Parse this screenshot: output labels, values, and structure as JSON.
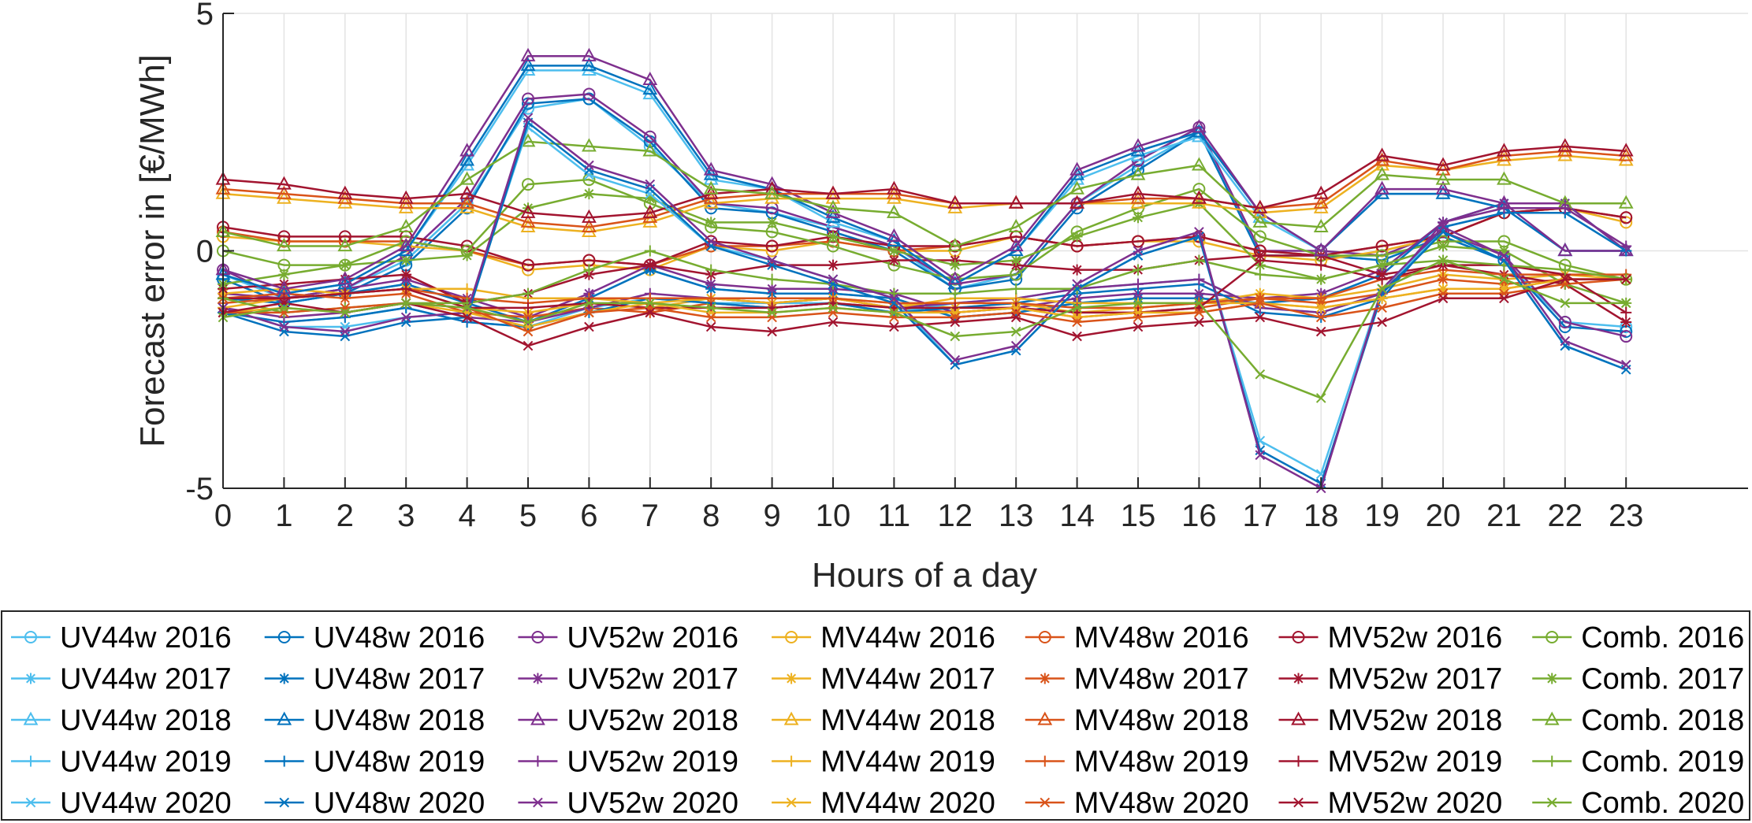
{
  "chart_data": {
    "type": "line",
    "title": "",
    "xlabel": "Hours of a day",
    "ylabel": "Forecast error in [€/MWh]",
    "x": [
      0,
      1,
      2,
      3,
      4,
      5,
      6,
      7,
      8,
      9,
      10,
      11,
      12,
      13,
      14,
      15,
      16,
      17,
      18,
      19,
      20,
      21,
      22,
      23
    ],
    "x_ticks": [
      "0",
      "1",
      "2",
      "3",
      "4",
      "5",
      "6",
      "7",
      "8",
      "9",
      "10",
      "11",
      "12",
      "13",
      "14",
      "15",
      "16",
      "17",
      "18",
      "19",
      "20",
      "21",
      "22",
      "23"
    ],
    "xlim": [
      0,
      25.0
    ],
    "ylim": [
      -5,
      5
    ],
    "y_ticks": [
      "-5",
      "0",
      "5"
    ],
    "grid": true,
    "legend_position": "bottom",
    "colors": {
      "UV44w": "#4DBEEE",
      "UV48w": "#0072BD",
      "UV52w": "#7E2F8E",
      "MV44w": "#EDB120",
      "MV48w": "#D95319",
      "MV52w": "#A2142F",
      "Comb.": "#77AC30"
    },
    "series": [
      {
        "name": "UV44w 2016",
        "model": "UV44w",
        "marker": "circle",
        "values": [
          -0.5,
          -1.0,
          -0.8,
          -0.2,
          1.0,
          3.0,
          3.2,
          2.2,
          1.0,
          0.8,
          0.5,
          0.1,
          -0.8,
          -0.5,
          1.0,
          1.8,
          2.5,
          -0.1,
          -0.1,
          -0.2,
          0.3,
          -0.2,
          -1.5,
          -1.6
        ]
      },
      {
        "name": "UV48w 2016",
        "model": "UV48w",
        "marker": "circle",
        "values": [
          -0.6,
          -1.1,
          -0.9,
          -0.3,
          0.9,
          3.1,
          3.2,
          2.3,
          0.9,
          0.8,
          0.4,
          0.0,
          -0.8,
          -0.6,
          0.9,
          1.7,
          2.5,
          -0.1,
          -0.1,
          -0.2,
          0.3,
          -0.2,
          -1.6,
          -1.7
        ]
      },
      {
        "name": "UV52w 2016",
        "model": "UV52w",
        "marker": "circle",
        "values": [
          -0.4,
          -1.0,
          -0.8,
          -0.1,
          1.1,
          3.2,
          3.3,
          2.4,
          1.0,
          0.9,
          0.5,
          0.1,
          -0.7,
          -0.5,
          1.0,
          1.9,
          2.6,
          0.0,
          0.0,
          -0.1,
          0.4,
          -0.1,
          -1.5,
          -1.8
        ]
      },
      {
        "name": "MV44w 2016",
        "model": "MV44w",
        "marker": "circle",
        "values": [
          0.3,
          0.2,
          0.2,
          0.1,
          0.0,
          -0.4,
          -0.3,
          -0.4,
          0.1,
          0.0,
          0.2,
          0.0,
          0.0,
          0.3,
          0.1,
          0.2,
          0.2,
          -0.1,
          -0.2,
          0.0,
          0.3,
          0.8,
          0.9,
          0.6
        ]
      },
      {
        "name": "MV48w 2016",
        "model": "MV48w",
        "marker": "circle",
        "values": [
          0.4,
          0.2,
          0.2,
          0.2,
          0.0,
          -0.3,
          -0.2,
          -0.3,
          0.1,
          0.1,
          0.2,
          0.0,
          0.1,
          0.3,
          0.1,
          0.2,
          0.3,
          0.0,
          -0.1,
          0.1,
          0.3,
          0.8,
          0.9,
          0.7
        ]
      },
      {
        "name": "MV52w 2016",
        "model": "MV52w",
        "marker": "circle",
        "values": [
          0.5,
          0.3,
          0.3,
          0.3,
          0.1,
          -0.3,
          -0.2,
          -0.3,
          0.2,
          0.1,
          0.3,
          0.1,
          0.1,
          0.3,
          0.1,
          0.2,
          0.3,
          0.0,
          -0.1,
          0.1,
          0.3,
          0.8,
          0.9,
          0.7
        ]
      },
      {
        "name": "Comb. 2016",
        "model": "Comb.",
        "marker": "circle",
        "values": [
          0.0,
          -0.3,
          -0.3,
          0.2,
          0.0,
          1.4,
          1.5,
          1.0,
          0.5,
          0.4,
          0.1,
          -0.3,
          -0.6,
          -0.5,
          0.4,
          0.9,
          1.3,
          0.3,
          -0.1,
          -0.1,
          0.2,
          0.2,
          -0.3,
          -0.6
        ]
      },
      {
        "name": "UV44w 2017",
        "model": "UV44w",
        "marker": "asterisk",
        "values": [
          -1.0,
          -1.1,
          -0.9,
          -0.7,
          -1.1,
          -1.5,
          -1.0,
          -0.4,
          -0.8,
          -0.9,
          -0.9,
          -1.0,
          -1.4,
          -1.3,
          -1.1,
          -1.0,
          -1.0,
          -1.1,
          -1.0,
          -0.5,
          0.6,
          1.0,
          1.0,
          0.0
        ]
      },
      {
        "name": "UV48w 2017",
        "model": "UV48w",
        "marker": "asterisk",
        "values": [
          -1.0,
          -1.1,
          -0.9,
          -0.7,
          -1.1,
          -1.5,
          -1.0,
          -0.4,
          -0.8,
          -0.9,
          -0.9,
          -1.0,
          -1.4,
          -1.3,
          -1.1,
          -1.0,
          -1.0,
          -1.1,
          -1.0,
          -0.5,
          0.6,
          1.0,
          1.0,
          0.0
        ]
      },
      {
        "name": "UV52w 2017",
        "model": "UV52w",
        "marker": "asterisk",
        "values": [
          -0.9,
          -1.0,
          -0.8,
          -0.6,
          -1.0,
          -1.4,
          -0.9,
          -0.3,
          -0.7,
          -0.8,
          -0.8,
          -0.9,
          -1.3,
          -1.2,
          -1.0,
          -0.9,
          -0.9,
          -1.0,
          -0.9,
          -0.4,
          0.6,
          1.0,
          1.0,
          0.0
        ]
      },
      {
        "name": "MV44w 2017",
        "model": "MV44w",
        "marker": "asterisk",
        "values": [
          -0.9,
          -0.8,
          -0.9,
          -0.8,
          -1.2,
          -1.3,
          -1.1,
          -1.2,
          -1.0,
          -1.1,
          -1.0,
          -1.1,
          -1.2,
          -1.1,
          -1.3,
          -1.2,
          -1.1,
          -0.9,
          -1.0,
          -0.8,
          -0.5,
          -0.6,
          -0.5,
          -0.6
        ]
      },
      {
        "name": "MV48w 2017",
        "model": "MV48w",
        "marker": "asterisk",
        "values": [
          -1.0,
          -0.9,
          -1.0,
          -0.9,
          -1.3,
          -1.4,
          -1.2,
          -1.3,
          -1.1,
          -1.2,
          -1.1,
          -1.2,
          -1.3,
          -1.2,
          -1.4,
          -1.3,
          -1.2,
          -1.0,
          -1.1,
          -0.9,
          -0.6,
          -0.7,
          -0.6,
          -0.6
        ]
      },
      {
        "name": "MV52w 2017",
        "model": "MV52w",
        "marker": "asterisk",
        "values": [
          -0.8,
          -0.7,
          -0.6,
          -0.5,
          -1.1,
          -0.9,
          -0.5,
          -0.3,
          -0.5,
          -0.3,
          -0.3,
          -0.2,
          -0.2,
          -0.3,
          -0.4,
          -0.4,
          -0.2,
          -0.1,
          -0.1,
          -0.5,
          -0.3,
          -0.5,
          -0.7,
          -1.5
        ]
      },
      {
        "name": "Comb. 2017",
        "model": "Comb.",
        "marker": "asterisk",
        "values": [
          -0.7,
          -0.5,
          -0.3,
          -0.2,
          -0.1,
          0.9,
          1.2,
          1.1,
          0.6,
          0.6,
          0.3,
          0.0,
          -0.3,
          -0.2,
          0.3,
          0.7,
          1.0,
          -0.3,
          -0.6,
          -0.3,
          0.1,
          0.0,
          -0.7,
          -1.1
        ]
      },
      {
        "name": "UV44w 2018",
        "model": "UV44w",
        "marker": "triangle",
        "values": [
          -0.5,
          -0.9,
          -0.7,
          0.0,
          1.8,
          3.8,
          3.8,
          3.3,
          1.5,
          1.3,
          0.6,
          0.2,
          -0.7,
          0.0,
          1.5,
          2.0,
          2.4,
          0.7,
          0.0,
          1.2,
          1.2,
          0.9,
          0.0,
          0.0
        ]
      },
      {
        "name": "UV48w 2018",
        "model": "UV48w",
        "marker": "triangle",
        "values": [
          -0.5,
          -0.9,
          -0.7,
          0.0,
          1.9,
          3.9,
          3.9,
          3.4,
          1.6,
          1.3,
          0.7,
          0.2,
          -0.7,
          0.0,
          1.6,
          2.1,
          2.5,
          0.8,
          0.0,
          1.2,
          1.2,
          0.9,
          0.0,
          0.0
        ]
      },
      {
        "name": "UV52w 2018",
        "model": "UV52w",
        "marker": "triangle",
        "values": [
          -0.4,
          -0.8,
          -0.6,
          0.1,
          2.1,
          4.1,
          4.1,
          3.6,
          1.7,
          1.4,
          0.8,
          0.3,
          -0.6,
          0.1,
          1.7,
          2.2,
          2.6,
          0.8,
          0.0,
          1.3,
          1.3,
          1.0,
          0.0,
          0.0
        ]
      },
      {
        "name": "MV44w 2018",
        "model": "MV44w",
        "marker": "triangle",
        "values": [
          1.2,
          1.1,
          1.0,
          0.9,
          0.9,
          0.5,
          0.4,
          0.6,
          1.0,
          1.1,
          1.1,
          1.1,
          0.9,
          1.0,
          1.0,
          1.0,
          1.0,
          0.8,
          0.9,
          1.8,
          1.7,
          1.9,
          2.0,
          1.9
        ]
      },
      {
        "name": "MV48w 2018",
        "model": "MV48w",
        "marker": "triangle",
        "values": [
          1.3,
          1.2,
          1.1,
          1.0,
          1.0,
          0.6,
          0.5,
          0.7,
          1.1,
          1.2,
          1.2,
          1.2,
          1.0,
          1.0,
          1.0,
          1.1,
          1.1,
          0.9,
          1.0,
          1.9,
          1.7,
          2.0,
          2.1,
          2.0
        ]
      },
      {
        "name": "MV52w 2018",
        "model": "MV52w",
        "marker": "triangle",
        "values": [
          1.5,
          1.4,
          1.2,
          1.1,
          1.2,
          0.8,
          0.7,
          0.8,
          1.2,
          1.3,
          1.2,
          1.3,
          1.0,
          1.0,
          1.0,
          1.2,
          1.1,
          0.9,
          1.2,
          2.0,
          1.8,
          2.1,
          2.2,
          2.1
        ]
      },
      {
        "name": "Comb. 2018",
        "model": "Comb.",
        "marker": "triangle",
        "values": [
          0.4,
          0.1,
          0.1,
          0.5,
          1.5,
          2.3,
          2.2,
          2.1,
          1.3,
          1.2,
          0.9,
          0.8,
          0.1,
          0.5,
          1.3,
          1.6,
          1.8,
          0.6,
          0.5,
          1.6,
          1.5,
          1.5,
          1.0,
          1.0
        ]
      },
      {
        "name": "UV44w 2019",
        "model": "UV44w",
        "marker": "plus",
        "values": [
          -1.3,
          -1.5,
          -1.4,
          -1.2,
          -1.5,
          -1.6,
          -1.2,
          -1.0,
          -1.1,
          -1.1,
          -1.1,
          -1.3,
          -1.1,
          -1.0,
          -0.8,
          -0.7,
          -0.6,
          -1.2,
          -1.3,
          -0.9,
          0.5,
          0.8,
          0.8,
          0.0
        ]
      },
      {
        "name": "UV48w 2019",
        "model": "UV48w",
        "marker": "plus",
        "values": [
          -1.3,
          -1.5,
          -1.4,
          -1.2,
          -1.5,
          -1.6,
          -1.3,
          -1.0,
          -1.1,
          -1.2,
          -1.1,
          -1.3,
          -1.2,
          -1.1,
          -0.9,
          -0.8,
          -0.7,
          -1.3,
          -1.4,
          -1.0,
          0.5,
          0.8,
          0.8,
          0.0
        ]
      },
      {
        "name": "UV52w 2019",
        "model": "UV52w",
        "marker": "plus",
        "values": [
          -1.2,
          -1.4,
          -1.3,
          -1.1,
          -1.4,
          -1.5,
          -1.2,
          -0.9,
          -1.0,
          -1.1,
          -1.0,
          -1.2,
          -1.1,
          -1.0,
          -0.8,
          -0.7,
          -0.6,
          -1.2,
          -1.3,
          -0.9,
          0.6,
          0.9,
          0.9,
          0.1
        ]
      },
      {
        "name": "MV44w 2019",
        "model": "MV44w",
        "marker": "plus",
        "values": [
          -1.2,
          -1.0,
          -0.9,
          -0.8,
          -0.8,
          -1.0,
          -1.0,
          -1.1,
          -1.0,
          -1.1,
          -1.0,
          -1.2,
          -1.0,
          -1.0,
          -1.1,
          -1.1,
          -1.1,
          -1.1,
          -1.2,
          -1.0,
          -0.8,
          -0.8,
          -0.6,
          -0.6
        ]
      },
      {
        "name": "MV48w 2019",
        "model": "MV48w",
        "marker": "plus",
        "values": [
          -1.1,
          -1.0,
          -0.9,
          -0.8,
          -1.0,
          -1.1,
          -1.0,
          -1.0,
          -1.0,
          -1.0,
          -1.0,
          -1.1,
          -1.1,
          -1.1,
          -1.2,
          -1.2,
          -1.1,
          -1.0,
          -1.0,
          -0.6,
          -0.4,
          -0.5,
          -0.5,
          -0.5
        ]
      },
      {
        "name": "MV52w 2019",
        "model": "MV52w",
        "marker": "plus",
        "values": [
          -1.0,
          -1.0,
          -0.9,
          -0.8,
          -1.2,
          -1.2,
          -1.1,
          -1.2,
          -1.2,
          -1.2,
          -1.1,
          -1.2,
          -1.2,
          -1.2,
          -1.3,
          -1.3,
          -1.2,
          -0.2,
          -0.3,
          -0.6,
          -0.3,
          -0.3,
          -0.5,
          -1.3
        ]
      },
      {
        "name": "Comb. 2019",
        "model": "Comb.",
        "marker": "plus",
        "values": [
          -1.0,
          -1.3,
          -1.2,
          -1.1,
          -1.1,
          -0.9,
          -0.4,
          0.0,
          -0.4,
          -0.6,
          -0.7,
          -0.9,
          -0.9,
          -0.8,
          -0.8,
          -0.4,
          -0.2,
          -0.5,
          -0.6,
          -0.3,
          -0.2,
          -0.3,
          -0.4,
          -0.6
        ]
      },
      {
        "name": "UV44w 2020",
        "model": "UV44w",
        "marker": "x",
        "values": [
          -1.2,
          -1.6,
          -1.6,
          -1.4,
          -1.3,
          2.6,
          1.6,
          1.2,
          0.1,
          -0.2,
          -0.6,
          -1.0,
          -2.4,
          -2.1,
          -0.8,
          -0.1,
          0.3,
          -4.0,
          -4.7,
          -0.8,
          0.4,
          -0.2,
          -2.0,
          -2.5
        ]
      },
      {
        "name": "UV48w 2020",
        "model": "UV48w",
        "marker": "x",
        "values": [
          -1.3,
          -1.7,
          -1.8,
          -1.5,
          -1.4,
          2.7,
          1.7,
          1.3,
          0.1,
          -0.3,
          -0.7,
          -1.1,
          -2.4,
          -2.1,
          -0.8,
          -0.1,
          0.3,
          -4.2,
          -4.9,
          -0.9,
          0.4,
          -0.2,
          -2.0,
          -2.5
        ]
      },
      {
        "name": "UV52w 2020",
        "model": "UV52w",
        "marker": "x",
        "values": [
          -1.2,
          -1.6,
          -1.7,
          -1.4,
          -1.3,
          2.8,
          1.8,
          1.4,
          0.2,
          -0.2,
          -0.6,
          -1.0,
          -2.3,
          -2.0,
          -0.7,
          0.0,
          0.4,
          -4.3,
          -5.0,
          -0.8,
          0.5,
          -0.1,
          -1.9,
          -2.4
        ]
      },
      {
        "name": "MV44w 2020",
        "model": "MV44w",
        "marker": "x",
        "values": [
          -1.3,
          -1.2,
          -1.3,
          -1.1,
          -1.3,
          -1.6,
          -1.3,
          -1.1,
          -1.3,
          -1.3,
          -1.2,
          -1.3,
          -1.3,
          -1.2,
          -1.4,
          -1.3,
          -1.3,
          -1.1,
          -1.2,
          -1.0,
          -0.8,
          -0.8,
          -0.6,
          -0.6
        ]
      },
      {
        "name": "MV48w 2020",
        "model": "MV48w",
        "marker": "x",
        "values": [
          -1.3,
          -1.3,
          -1.2,
          -1.1,
          -1.2,
          -1.7,
          -1.3,
          -1.2,
          -1.4,
          -1.4,
          -1.3,
          -1.4,
          -1.4,
          -1.3,
          -1.5,
          -1.4,
          -1.3,
          -1.1,
          -1.4,
          -1.2,
          -0.9,
          -0.9,
          -0.7,
          -0.6
        ]
      },
      {
        "name": "MV52w 2020",
        "model": "MV52w",
        "marker": "x",
        "values": [
          -1.3,
          -1.1,
          -1.3,
          -1.1,
          -1.4,
          -2.0,
          -1.6,
          -1.3,
          -1.6,
          -1.7,
          -1.5,
          -1.6,
          -1.5,
          -1.4,
          -1.8,
          -1.6,
          -1.5,
          -1.4,
          -1.7,
          -1.5,
          -1.0,
          -1.0,
          -0.6,
          -0.6
        ]
      },
      {
        "name": "Comb. 2020",
        "model": "Comb.",
        "marker": "x",
        "values": [
          -1.4,
          -1.2,
          -1.3,
          -1.1,
          -1.2,
          -1.5,
          -1.1,
          -1.1,
          -1.2,
          -1.3,
          -1.2,
          -1.3,
          -1.8,
          -1.7,
          -1.2,
          -1.1,
          -1.1,
          -2.6,
          -3.1,
          -0.8,
          -0.2,
          -0.6,
          -1.1,
          -1.1
        ]
      }
    ]
  }
}
